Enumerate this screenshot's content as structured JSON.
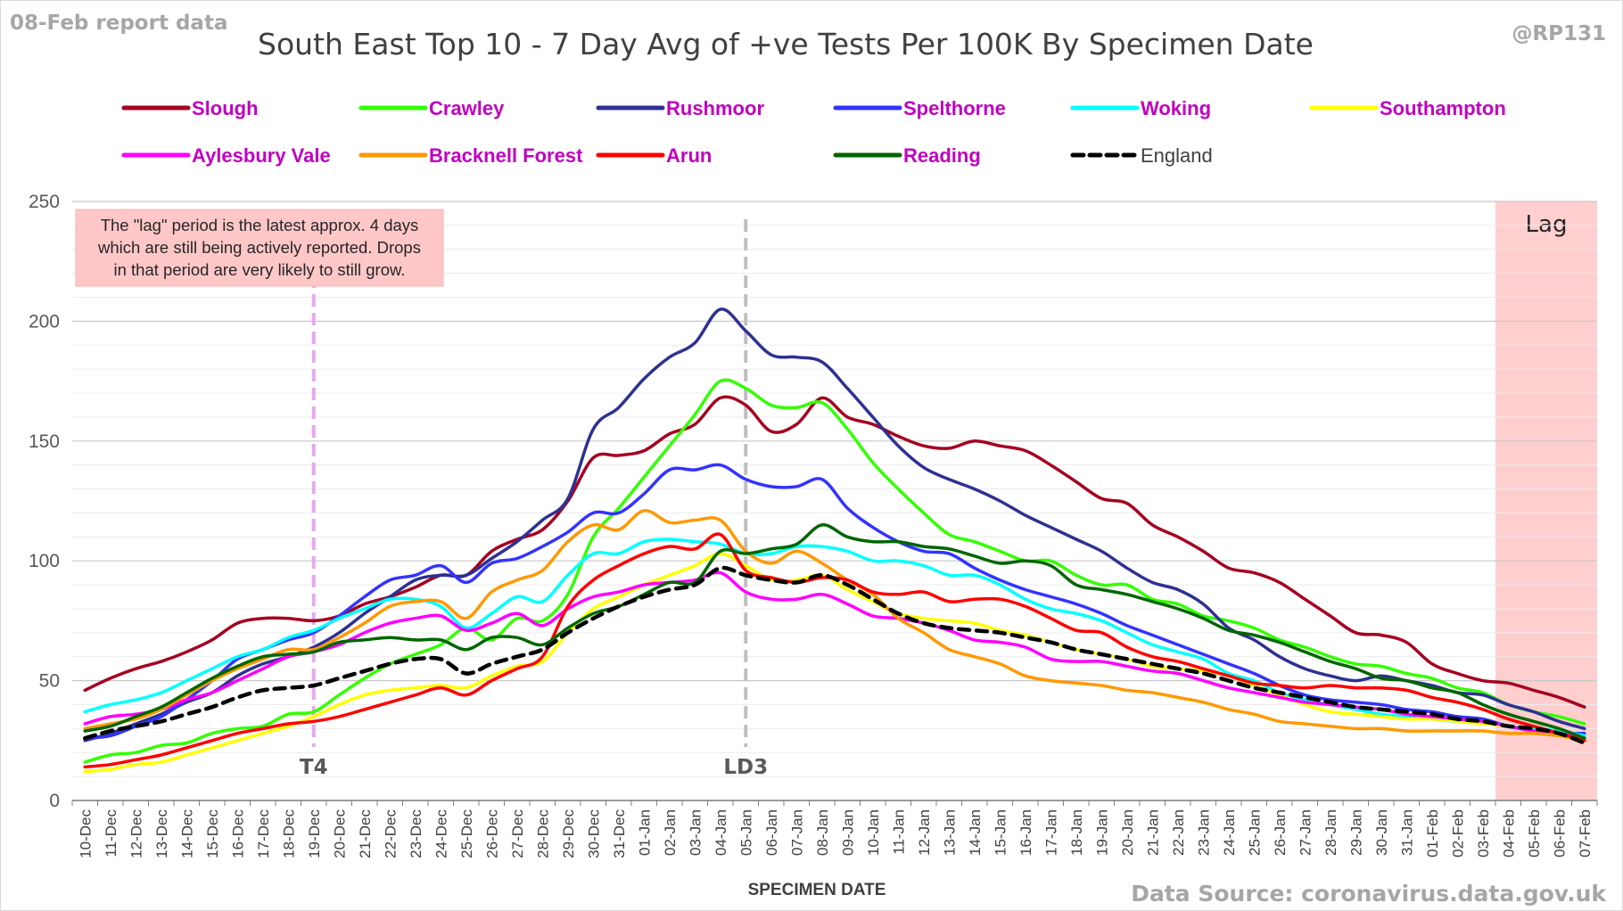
{
  "header": {
    "report_date": "08-Feb report data",
    "handle": "@RP131",
    "source": "Data Source: coronavirus.data.gov.uk"
  },
  "annotations": {
    "note_lines": [
      "The \"lag\" period is the latest approx. 4 days",
      "which are still being actively reported.  Drops",
      "in that period are very likely to still grow."
    ],
    "lag_label": "Lag",
    "markers": [
      {
        "label": "T4",
        "date": "19-Dec",
        "color": "#e5a8f0"
      },
      {
        "label": "LD3",
        "date": "05-Jan",
        "color": "#bfbfbf"
      }
    ]
  },
  "chart_data": {
    "type": "line",
    "title": "South East Top 10 - 7 Day Avg of +ve Tests Per 100K By Specimen Date",
    "xlabel": "SPECIMEN DATE",
    "ylabel": "",
    "ylim": [
      0,
      250
    ],
    "yticks": [
      0,
      50,
      100,
      150,
      200,
      250
    ],
    "grid": true,
    "legend_position": "top",
    "lag_period": [
      "03-Feb",
      "07-Feb"
    ],
    "x": [
      "10-Dec",
      "11-Dec",
      "12-Dec",
      "13-Dec",
      "14-Dec",
      "15-Dec",
      "16-Dec",
      "17-Dec",
      "18-Dec",
      "19-Dec",
      "20-Dec",
      "21-Dec",
      "22-Dec",
      "23-Dec",
      "24-Dec",
      "25-Dec",
      "26-Dec",
      "27-Dec",
      "28-Dec",
      "29-Dec",
      "30-Dec",
      "31-Dec",
      "01-Jan",
      "02-Jan",
      "03-Jan",
      "04-Jan",
      "05-Jan",
      "06-Jan",
      "07-Jan",
      "08-Jan",
      "09-Jan",
      "10-Jan",
      "11-Jan",
      "12-Jan",
      "13-Jan",
      "14-Jan",
      "15-Jan",
      "16-Jan",
      "17-Jan",
      "18-Jan",
      "19-Jan",
      "20-Jan",
      "21-Jan",
      "22-Jan",
      "23-Jan",
      "24-Jan",
      "25-Jan",
      "26-Jan",
      "27-Jan",
      "28-Jan",
      "29-Jan",
      "30-Jan",
      "31-Jan",
      "01-Feb",
      "02-Feb",
      "03-Feb",
      "04-Feb",
      "05-Feb",
      "06-Feb",
      "07-Feb"
    ],
    "series": [
      {
        "name": "Slough",
        "color": "#a50021",
        "dash": false,
        "values": [
          46,
          51,
          55,
          58,
          62,
          67,
          74,
          76,
          76,
          75,
          77,
          82,
          85,
          89,
          94,
          94,
          104,
          109,
          113,
          125,
          143,
          144,
          146,
          153,
          157,
          168,
          165,
          154,
          157,
          168,
          160,
          157,
          152,
          148,
          147,
          150,
          148,
          146,
          140,
          133,
          126,
          124,
          115,
          110,
          104,
          97,
          95,
          91,
          84,
          77,
          70,
          69,
          66,
          57,
          53,
          50,
          49,
          46,
          43,
          39
        ]
      },
      {
        "name": "Crawley",
        "color": "#33ff00",
        "dash": false,
        "values": [
          16,
          19,
          20,
          23,
          24,
          28,
          30,
          31,
          36,
          37,
          44,
          51,
          57,
          61,
          65,
          72,
          67,
          76,
          75,
          86,
          110,
          122,
          135,
          148,
          161,
          175,
          172,
          165,
          164,
          166,
          155,
          141,
          130,
          120,
          111,
          108,
          104,
          100,
          100,
          94,
          90,
          90,
          84,
          82,
          77,
          75,
          72,
          67,
          64,
          60,
          57,
          56,
          53,
          51,
          47,
          45,
          40,
          37,
          35,
          32
        ]
      },
      {
        "name": "Rushmoor",
        "color": "#2e3192",
        "dash": false,
        "values": [
          25,
          28,
          32,
          36,
          41,
          45,
          52,
          57,
          60,
          64,
          70,
          78,
          85,
          92,
          94,
          94,
          101,
          108,
          117,
          126,
          155,
          164,
          176,
          185,
          191,
          205,
          196,
          186,
          185,
          183,
          172,
          160,
          148,
          139,
          134,
          130,
          125,
          119,
          114,
          109,
          104,
          97,
          91,
          88,
          82,
          72,
          67,
          60,
          55,
          52,
          50,
          52,
          50,
          48,
          45,
          44,
          40,
          37,
          33,
          30
        ]
      },
      {
        "name": "Spelthorne",
        "color": "#3333ff",
        "dash": false,
        "values": [
          26,
          27,
          31,
          35,
          42,
          50,
          59,
          63,
          67,
          70,
          77,
          85,
          92,
          94,
          98,
          91,
          99,
          101,
          106,
          112,
          120,
          120,
          128,
          138,
          138,
          140,
          134,
          131,
          131,
          134,
          122,
          114,
          108,
          104,
          103,
          97,
          92,
          88,
          85,
          82,
          78,
          73,
          69,
          65,
          61,
          57,
          53,
          48,
          44,
          42,
          41,
          40,
          38,
          37,
          35,
          34,
          31,
          29,
          28,
          28
        ]
      },
      {
        "name": "Woking",
        "color": "#00ffff",
        "dash": false,
        "values": [
          37,
          40,
          42,
          45,
          50,
          55,
          60,
          63,
          68,
          71,
          76,
          80,
          84,
          84,
          81,
          72,
          78,
          85,
          83,
          94,
          103,
          103,
          108,
          109,
          108,
          107,
          103,
          103,
          106,
          106,
          104,
          100,
          100,
          98,
          94,
          94,
          90,
          84,
          80,
          78,
          75,
          70,
          65,
          62,
          59,
          53,
          50,
          45,
          42,
          40,
          38,
          36,
          35,
          34,
          33,
          33,
          31,
          30,
          29,
          27
        ]
      },
      {
        "name": "Southampton",
        "color": "#ffff00",
        "dash": false,
        "values": [
          12,
          13,
          15,
          16,
          19,
          22,
          25,
          28,
          31,
          35,
          40,
          44,
          46,
          47,
          48,
          47,
          52,
          56,
          58,
          70,
          80,
          85,
          90,
          94,
          98,
          103,
          98,
          92,
          92,
          94,
          88,
          83,
          78,
          76,
          75,
          74,
          71,
          69,
          66,
          63,
          61,
          59,
          56,
          55,
          54,
          52,
          48,
          44,
          40,
          37,
          36,
          35,
          34,
          34,
          33,
          32,
          31,
          29,
          27,
          25
        ]
      },
      {
        "name": "Aylesbury Vale",
        "color": "#ff00ff",
        "dash": false,
        "values": [
          32,
          35,
          36,
          38,
          42,
          45,
          50,
          55,
          60,
          62,
          65,
          70,
          74,
          76,
          77,
          71,
          74,
          78,
          73,
          80,
          85,
          87,
          90,
          91,
          92,
          95,
          87,
          84,
          84,
          86,
          82,
          77,
          76,
          74,
          71,
          67,
          66,
          64,
          59,
          58,
          58,
          56,
          54,
          53,
          50,
          47,
          45,
          43,
          41,
          40,
          39,
          38,
          36,
          35,
          34,
          33,
          31,
          29,
          28,
          26
        ]
      },
      {
        "name": "Bracknell Forest",
        "color": "#ff9900",
        "dash": false,
        "values": [
          30,
          32,
          34,
          38,
          44,
          50,
          55,
          59,
          63,
          63,
          68,
          74,
          81,
          83,
          83,
          76,
          87,
          92,
          96,
          108,
          115,
          113,
          121,
          116,
          117,
          117,
          104,
          99,
          104,
          99,
          92,
          86,
          76,
          70,
          63,
          60,
          57,
          52,
          50,
          49,
          48,
          46,
          45,
          43,
          41,
          38,
          36,
          33,
          32,
          31,
          30,
          30,
          29,
          29,
          29,
          29,
          28,
          28,
          27,
          25
        ]
      },
      {
        "name": "Arun",
        "color": "#ff0000",
        "dash": false,
        "values": [
          14,
          15,
          17,
          19,
          22,
          25,
          28,
          30,
          32,
          33,
          35,
          38,
          41,
          44,
          47,
          44,
          50,
          55,
          60,
          81,
          92,
          98,
          103,
          106,
          105,
          111,
          96,
          93,
          91,
          93,
          92,
          87,
          86,
          87,
          83,
          84,
          84,
          81,
          76,
          71,
          70,
          64,
          60,
          58,
          55,
          52,
          49,
          48,
          47,
          48,
          47,
          47,
          46,
          43,
          41,
          38,
          34,
          31,
          28,
          25
        ]
      },
      {
        "name": "Reading",
        "color": "#006600",
        "dash": false,
        "values": [
          29,
          31,
          35,
          39,
          45,
          51,
          56,
          60,
          61,
          62,
          66,
          67,
          68,
          67,
          67,
          63,
          68,
          68,
          65,
          72,
          78,
          81,
          86,
          91,
          91,
          104,
          103,
          105,
          107,
          115,
          110,
          108,
          108,
          106,
          105,
          102,
          99,
          100,
          98,
          90,
          88,
          86,
          83,
          80,
          76,
          71,
          69,
          66,
          62,
          58,
          55,
          51,
          50,
          47,
          45,
          40,
          36,
          33,
          30,
          26
        ]
      },
      {
        "name": "England",
        "color": "#000000",
        "dash": true,
        "values": [
          26,
          29,
          31,
          33,
          36,
          39,
          43,
          46,
          47,
          48,
          51,
          54,
          57,
          59,
          59,
          53,
          57,
          60,
          63,
          70,
          76,
          81,
          85,
          88,
          90,
          97,
          94,
          92,
          91,
          94,
          90,
          84,
          78,
          74,
          72,
          71,
          70,
          68,
          66,
          63,
          61,
          59,
          57,
          55,
          53,
          50,
          47,
          45,
          43,
          41,
          39,
          38,
          37,
          36,
          34,
          33,
          31,
          30,
          28,
          24
        ]
      }
    ]
  }
}
